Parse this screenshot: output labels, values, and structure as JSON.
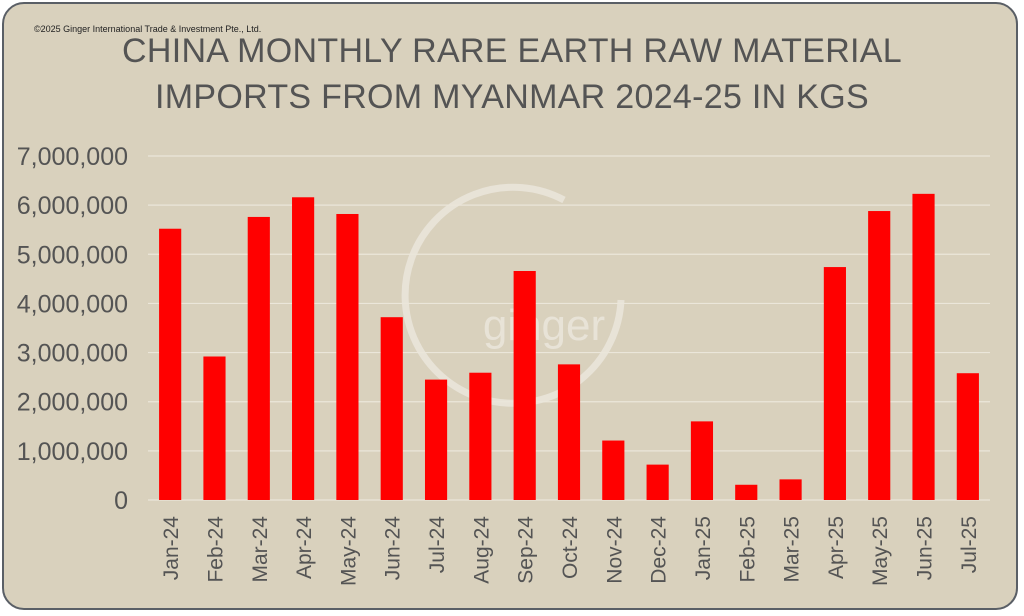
{
  "copyright": "©2025 Ginger International Trade & Investment Pte., Ltd.",
  "watermark": "ginger",
  "colors": {
    "bar": "#ff0000",
    "background": "#d9d1bd",
    "text": "#545454"
  },
  "chart_data": {
    "type": "bar",
    "title_lines": [
      "CHINA MONTHLY RARE EARTH RAW MATERIAL",
      "IMPORTS FROM MYANMAR 2024-25 IN KGS"
    ],
    "xlabel": "",
    "ylabel": "",
    "ylim": [
      0,
      7000000
    ],
    "grid": true,
    "y_ticks": [
      {
        "value": 0,
        "label": "0"
      },
      {
        "value": 1000000,
        "label": "1,000,000"
      },
      {
        "value": 2000000,
        "label": "2,000,000"
      },
      {
        "value": 3000000,
        "label": "3,000,000"
      },
      {
        "value": 4000000,
        "label": "4,000,000"
      },
      {
        "value": 5000000,
        "label": "5,000,000"
      },
      {
        "value": 6000000,
        "label": "6,000,000"
      },
      {
        "value": 7000000,
        "label": "7,000,000"
      }
    ],
    "categories": [
      "Jan-24",
      "Feb-24",
      "Mar-24",
      "Apr-24",
      "May-24",
      "Jun-24",
      "Jul-24",
      "Aug-24",
      "Sep-24",
      "Oct-24",
      "Nov-24",
      "Dec-24",
      "Jan-25",
      "Feb-25",
      "Mar-25",
      "Apr-25",
      "May-25",
      "Jun-25",
      "Jul-25"
    ],
    "values": [
      5520000,
      2920000,
      5760000,
      6160000,
      5820000,
      3720000,
      2450000,
      2590000,
      4660000,
      2760000,
      1210000,
      720000,
      1600000,
      310000,
      420000,
      4740000,
      5880000,
      6230000,
      2580000
    ]
  }
}
